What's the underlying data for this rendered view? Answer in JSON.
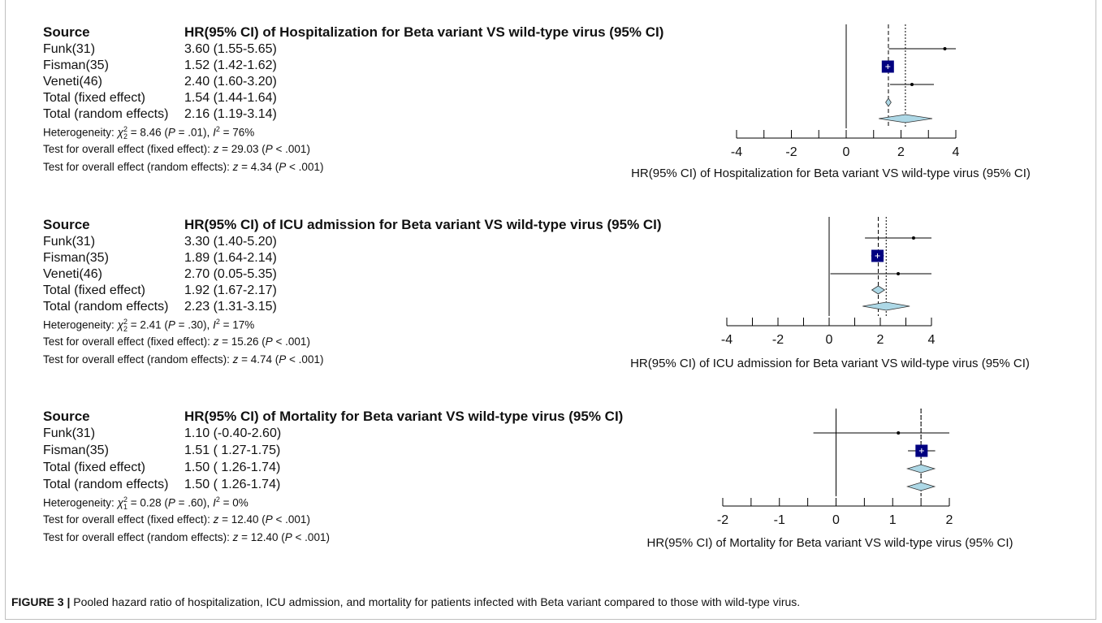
{
  "panels": [
    {
      "source_header": "Source",
      "title": "HR(95% CI) of Hospitalization for Beta variant VS wild-type virus (95% CI)",
      "rows": [
        {
          "name": "Funk(31)",
          "ci": "3.60 (1.55-5.65)"
        },
        {
          "name": "Fisman(35)",
          "ci": "1.52 (1.42-1.62)"
        },
        {
          "name": "Veneti(46)",
          "ci": "2.40 (1.60-3.20)"
        },
        {
          "name": "Total (fixed effect)",
          "ci": "1.54 (1.44-1.64)"
        },
        {
          "name": "Total (random effects)",
          "ci": "2.16 (1.19-3.14)"
        }
      ],
      "heterogeneity": {
        "prefix": "Heterogeneity: ",
        "chi": "χ",
        "sub": "2",
        "sup": "2",
        "chi_value": " = 8.46 (",
        "p_label": "P",
        "p_value": " = .01), ",
        "i_label": "I",
        "i_sup": "2",
        "i_value": " = 76%"
      },
      "test_fixed": {
        "prefix": "Test for overall effect (fixed effect): ",
        "z": "z",
        "z_value": " = 29.03 (",
        "p": "P",
        "p_value": " < .001)"
      },
      "test_random": {
        "prefix": "Test for overall effect (random effects): ",
        "z": "z",
        "z_value": " = 4.34 (",
        "p": "P",
        "p_value": " < .001)"
      },
      "axis_label": "HR(95% CI) of Hospitalization for Beta variant VS wild-type virus (95% CI)"
    },
    {
      "source_header": "Source",
      "title": "HR(95% CI) of ICU admission for Beta variant VS wild-type virus (95% CI)",
      "rows": [
        {
          "name": "Funk(31)",
          "ci": "3.30 (1.40-5.20)"
        },
        {
          "name": "Fisman(35)",
          "ci": "1.89 (1.64-2.14)"
        },
        {
          "name": "Veneti(46)",
          "ci": "2.70 (0.05-5.35)"
        },
        {
          "name": "Total (fixed effect)",
          "ci": "1.92 (1.67-2.17)"
        },
        {
          "name": "Total (random effects)",
          "ci": "2.23 (1.31-3.15)"
        }
      ],
      "heterogeneity": {
        "prefix": "Heterogeneity: ",
        "chi": "χ",
        "sub": "2",
        "sup": "2",
        "chi_value": " = 2.41 (",
        "p_label": "P",
        "p_value": " = .30), ",
        "i_label": "I",
        "i_sup": "2",
        "i_value": " = 17%"
      },
      "test_fixed": {
        "prefix": "Test for overall effect (fixed effect): ",
        "z": "z",
        "z_value": " = 15.26 (",
        "p": "P",
        "p_value": " < .001)"
      },
      "test_random": {
        "prefix": "Test for overall effect (random effects): ",
        "z": "z",
        "z_value": " = 4.74 (",
        "p": "P",
        "p_value": " < .001)"
      },
      "axis_label": "HR(95% CI) of ICU admission for Beta variant VS wild-type virus (95% CI)"
    },
    {
      "source_header": "Source",
      "title": "HR(95% CI) of Mortality for Beta variant VS wild-type virus (95% CI)",
      "rows": [
        {
          "name": "Funk(31)",
          "ci": "1.10 (-0.40-2.60)"
        },
        {
          "name": "Fisman(35)",
          "ci": "1.51 ( 1.27-1.75)"
        },
        {
          "name": "Total (fixed effect)",
          "ci": "1.50 ( 1.26-1.74)"
        },
        {
          "name": "Total (random effects)",
          "ci": "1.50 ( 1.26-1.74)"
        }
      ],
      "heterogeneity": {
        "prefix": "Heterogeneity: ",
        "chi": "χ",
        "sub": "1",
        "sup": "2",
        "chi_value": " = 0.28 (",
        "p_label": "P",
        "p_value": " = .60), ",
        "i_label": "I",
        "i_sup": "2",
        "i_value": " = 0%"
      },
      "test_fixed": {
        "prefix": "Test for overall effect (fixed effect): ",
        "z": "z",
        "z_value": " = 12.40 (",
        "p": "P",
        "p_value": " < .001)"
      },
      "test_random": {
        "prefix": "Test for overall effect (random effects): ",
        "z": "z",
        "z_value": " = 12.40 (",
        "p": "P",
        "p_value": " < .001)"
      },
      "axis_label": "HR(95% CI) of Mortality for Beta variant VS wild-type virus (95% CI)"
    }
  ],
  "caption": {
    "label": "FIGURE 3 |",
    "text": " Pooled hazard ratio of hospitalization, ICU admission, and mortality for patients infected with Beta variant compared to those with wild-type virus."
  },
  "colors": {
    "square": "#000080",
    "diamond": "#add8e6",
    "line": "#000000"
  },
  "chart_data": [
    {
      "type": "forest",
      "title": "HR(95% CI) of Hospitalization for Beta variant VS wild-type virus (95% CI)",
      "xlabel": "HR(95% CI) of Hospitalization for Beta variant VS wild-type virus (95% CI)",
      "xlim": [
        -4,
        4
      ],
      "xticks": [
        -4,
        -2,
        0,
        2,
        4
      ],
      "studies": [
        {
          "name": "Funk(31)",
          "est": 3.6,
          "lo": 1.55,
          "hi": 5.65,
          "weight": 0.0
        },
        {
          "name": "Fisman(35)",
          "est": 1.52,
          "lo": 1.42,
          "hi": 1.62,
          "weight": 1.0
        },
        {
          "name": "Veneti(46)",
          "est": 2.4,
          "lo": 1.6,
          "hi": 3.2,
          "weight": 0.05
        }
      ],
      "pooled": [
        {
          "name": "Total (fixed effect)",
          "est": 1.54,
          "lo": 1.44,
          "hi": 1.64
        },
        {
          "name": "Total (random effects)",
          "est": 2.16,
          "lo": 1.19,
          "hi": 3.14
        }
      ]
    },
    {
      "type": "forest",
      "title": "HR(95% CI) of ICU admission for Beta variant VS wild-type virus (95% CI)",
      "xlabel": "HR(95% CI) of ICU admission for Beta variant VS wild-type virus (95% CI)",
      "xlim": [
        -4,
        4
      ],
      "xticks": [
        -4,
        -2,
        0,
        2,
        4
      ],
      "studies": [
        {
          "name": "Funk(31)",
          "est": 3.3,
          "lo": 1.4,
          "hi": 5.2,
          "weight": 0.0
        },
        {
          "name": "Fisman(35)",
          "est": 1.89,
          "lo": 1.64,
          "hi": 2.14,
          "weight": 1.0
        },
        {
          "name": "Veneti(46)",
          "est": 2.7,
          "lo": 0.05,
          "hi": 5.35,
          "weight": 0.0
        }
      ],
      "pooled": [
        {
          "name": "Total (fixed effect)",
          "est": 1.92,
          "lo": 1.67,
          "hi": 2.17
        },
        {
          "name": "Total (random effects)",
          "est": 2.23,
          "lo": 1.31,
          "hi": 3.15
        }
      ]
    },
    {
      "type": "forest",
      "title": "HR(95% CI) of Mortality for Beta variant VS wild-type virus (95% CI)",
      "xlabel": "HR(95% CI) of Mortality for Beta variant VS wild-type virus (95% CI)",
      "xlim": [
        -2,
        2
      ],
      "xticks": [
        -2,
        -1,
        0,
        1,
        2
      ],
      "studies": [
        {
          "name": "Funk(31)",
          "est": 1.1,
          "lo": -0.4,
          "hi": 2.6,
          "weight": 0.0
        },
        {
          "name": "Fisman(35)",
          "est": 1.51,
          "lo": 1.27,
          "hi": 1.75,
          "weight": 1.0
        }
      ],
      "pooled": [
        {
          "name": "Total (fixed effect)",
          "est": 1.5,
          "lo": 1.26,
          "hi": 1.74
        },
        {
          "name": "Total (random effects)",
          "est": 1.5,
          "lo": 1.26,
          "hi": 1.74
        }
      ]
    }
  ]
}
